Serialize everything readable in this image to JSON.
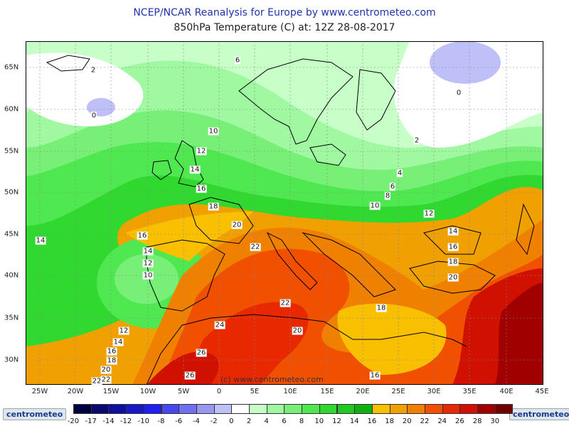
{
  "header": {
    "title": "NCEP/NCAR Reanalysis for Europe by www.centrometeo.com",
    "subtitle": "850hPa Temperature (C) at: 12Z 28-08-2017"
  },
  "axes": {
    "lon_labels": [
      "25W",
      "20W",
      "15W",
      "10W",
      "5W",
      "0",
      "5E",
      "10E",
      "15E",
      "20E",
      "25E",
      "30E",
      "35E",
      "40E",
      "45E"
    ],
    "lat_labels": [
      "65N",
      "60N",
      "55N",
      "50N",
      "45N",
      "40N",
      "35N",
      "30N"
    ]
  },
  "contour_labels": [
    "2",
    "0",
    "6",
    "0",
    "2",
    "10",
    "12",
    "14",
    "16",
    "18",
    "20",
    "22",
    "4",
    "6",
    "8",
    "10",
    "12",
    "14",
    "16",
    "18",
    "20",
    "14",
    "16",
    "14",
    "12",
    "10",
    "22",
    "24",
    "26",
    "26",
    "12",
    "14",
    "16",
    "18",
    "20",
    "22",
    "22",
    "20",
    "18",
    "16"
  ],
  "credit": "(c) www.centrometeo.com",
  "legend": {
    "values": [
      "-20",
      "-17",
      "-14",
      "-12",
      "-10",
      "-8",
      "-6",
      "-4",
      "-2",
      "0",
      "2",
      "4",
      "6",
      "8",
      "10",
      "12",
      "14",
      "16",
      "18",
      "20",
      "22",
      "24",
      "26",
      "28",
      "30"
    ],
    "colors": [
      "#000040",
      "#0a0a70",
      "#1010a0",
      "#1818c8",
      "#2020f0",
      "#4848f0",
      "#7070f0",
      "#9898f0",
      "#c0c0f8",
      "#ffffff",
      "#c8ffc8",
      "#a0f8a0",
      "#78f078",
      "#50e850",
      "#30d830",
      "#20c820",
      "#10b010",
      "#f8c000",
      "#f0a000",
      "#f08000",
      "#f05000",
      "#e82800",
      "#d01000",
      "#a00000",
      "#700000"
    ],
    "logo_text": "centrometeo"
  },
  "colors": {
    "title": "#2233aa",
    "coast": "#000000",
    "grid": "#888888"
  }
}
